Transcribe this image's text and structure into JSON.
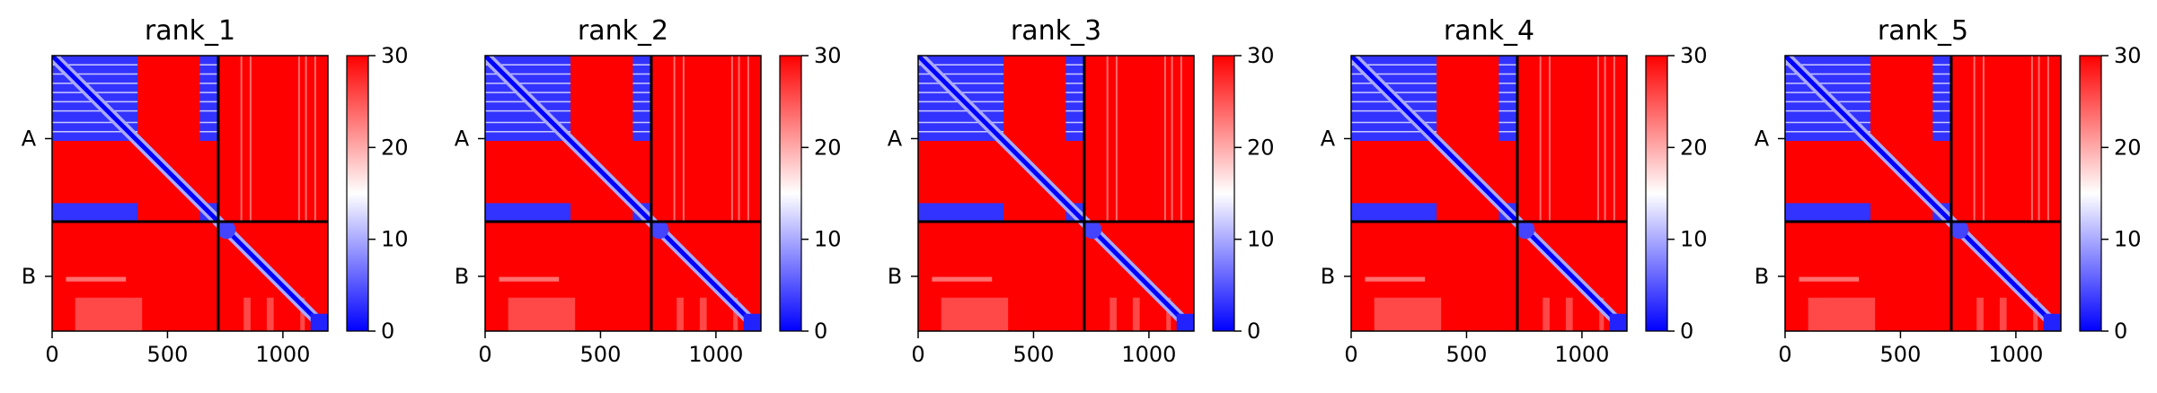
{
  "figure": {
    "colors": {
      "low": "#0000ff",
      "mid": "#ffffff",
      "high": "#ff0000",
      "divider": "#000000"
    },
    "colorbar": {
      "min": 0,
      "max": 30,
      "ticks": [
        0,
        10,
        20,
        30
      ]
    }
  },
  "chart_data": [
    {
      "type": "heatmap",
      "title": "rank_1",
      "x_ticks": [
        0,
        500,
        1000
      ],
      "chain_labels": [
        "A",
        "B"
      ],
      "chain_boundary": 720,
      "length": 1195,
      "value_range": [
        0,
        30
      ],
      "colorbar_ticks": [
        0,
        10,
        20,
        30
      ],
      "colormap": "bwr",
      "blocks": [
        {
          "rows": [
            0,
            370
          ],
          "cols": [
            0,
            370
          ],
          "value": 3
        },
        {
          "rows": [
            0,
            370
          ],
          "cols": [
            640,
            720
          ],
          "value": 3
        },
        {
          "rows": [
            640,
            720
          ],
          "cols": [
            0,
            370
          ],
          "value": 3
        },
        {
          "rows": [
            640,
            720
          ],
          "cols": [
            640,
            720
          ],
          "value": 3
        }
      ]
    },
    {
      "type": "heatmap",
      "title": "rank_2",
      "x_ticks": [
        0,
        500,
        1000
      ],
      "chain_labels": [
        "A",
        "B"
      ],
      "chain_boundary": 720,
      "length": 1195,
      "value_range": [
        0,
        30
      ],
      "colorbar_ticks": [
        0,
        10,
        20,
        30
      ],
      "colormap": "bwr",
      "blocks": [
        {
          "rows": [
            0,
            370
          ],
          "cols": [
            0,
            370
          ],
          "value": 3
        },
        {
          "rows": [
            0,
            370
          ],
          "cols": [
            640,
            720
          ],
          "value": 3
        },
        {
          "rows": [
            640,
            720
          ],
          "cols": [
            0,
            370
          ],
          "value": 3
        },
        {
          "rows": [
            640,
            720
          ],
          "cols": [
            640,
            720
          ],
          "value": 3
        }
      ]
    },
    {
      "type": "heatmap",
      "title": "rank_3",
      "x_ticks": [
        0,
        500,
        1000
      ],
      "chain_labels": [
        "A",
        "B"
      ],
      "chain_boundary": 720,
      "length": 1195,
      "value_range": [
        0,
        30
      ],
      "colorbar_ticks": [
        0,
        10,
        20,
        30
      ],
      "colormap": "bwr",
      "blocks": [
        {
          "rows": [
            0,
            370
          ],
          "cols": [
            0,
            370
          ],
          "value": 3
        },
        {
          "rows": [
            0,
            370
          ],
          "cols": [
            640,
            720
          ],
          "value": 3
        },
        {
          "rows": [
            640,
            720
          ],
          "cols": [
            0,
            370
          ],
          "value": 3
        },
        {
          "rows": [
            640,
            720
          ],
          "cols": [
            640,
            720
          ],
          "value": 3
        }
      ]
    },
    {
      "type": "heatmap",
      "title": "rank_4",
      "x_ticks": [
        0,
        500,
        1000
      ],
      "chain_labels": [
        "A",
        "B"
      ],
      "chain_boundary": 720,
      "length": 1195,
      "value_range": [
        0,
        30
      ],
      "colorbar_ticks": [
        0,
        10,
        20,
        30
      ],
      "colormap": "bwr",
      "blocks": [
        {
          "rows": [
            0,
            370
          ],
          "cols": [
            0,
            370
          ],
          "value": 3
        },
        {
          "rows": [
            0,
            370
          ],
          "cols": [
            640,
            720
          ],
          "value": 3
        },
        {
          "rows": [
            640,
            720
          ],
          "cols": [
            0,
            370
          ],
          "value": 3
        },
        {
          "rows": [
            640,
            720
          ],
          "cols": [
            640,
            720
          ],
          "value": 3
        }
      ]
    },
    {
      "type": "heatmap",
      "title": "rank_5",
      "x_ticks": [
        0,
        500,
        1000
      ],
      "chain_labels": [
        "A",
        "B"
      ],
      "chain_boundary": 720,
      "length": 1195,
      "value_range": [
        0,
        30
      ],
      "colorbar_ticks": [
        0,
        10,
        20,
        30
      ],
      "colormap": "bwr",
      "blocks": [
        {
          "rows": [
            0,
            370
          ],
          "cols": [
            0,
            370
          ],
          "value": 3
        },
        {
          "rows": [
            0,
            370
          ],
          "cols": [
            640,
            720
          ],
          "value": 3
        },
        {
          "rows": [
            640,
            720
          ],
          "cols": [
            0,
            370
          ],
          "value": 3
        },
        {
          "rows": [
            640,
            720
          ],
          "cols": [
            640,
            720
          ],
          "value": 3
        }
      ]
    }
  ]
}
